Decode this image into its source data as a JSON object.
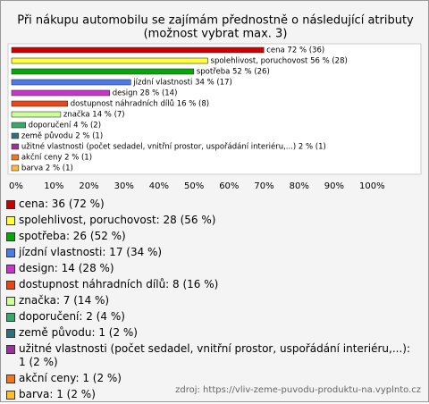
{
  "chart_data": {
    "type": "bar",
    "orientation": "horizontal",
    "title": "Při nákupu automobilu se zajímám přednostně o následující atributy",
    "subtitle": "(možnost vybrat max. 3)",
    "categories": [
      "cena",
      "spolehlivost, poruchovost",
      "spotřeba",
      "jízdní vlastnosti",
      "design",
      "dostupnost náhradních dílů",
      "značka",
      "doporučení",
      "země původu",
      "užitné vlastnosti (počet sedadel, vnitřní prostor, uspořádání interiéru,...)",
      "akční ceny",
      "barva"
    ],
    "values": [
      72,
      56,
      52,
      34,
      28,
      16,
      14,
      4,
      2,
      2,
      2,
      2
    ],
    "value_labels": [
      "cena 72 % (36)",
      "spolehlivost, poruchovost 56 % (28)",
      "spotřeba 52 % (26)",
      "jízdní vlastnosti 34 % (17)",
      "design 28 % (14)",
      "dostupnost náhradních dílů 16 % (8)",
      "značka 14 % (7)",
      "doporučení 4 % (2)",
      "země původu 2 % (1)",
      "užitné vlastnosti (počet sedadel, vnitřní prostor, uspořádání interiéru,...) 2 % (1)",
      "akční ceny 2 % (1)",
      "barva 2 % (1)"
    ],
    "legend": [
      "cena: 36 (72 %)",
      "spolehlivost, poruchovost: 28 (56 %)",
      "spotřeba: 26 (52 %)",
      "jízdní vlastnosti: 17 (34 %)",
      "design: 14 (28 %)",
      "dostupnost náhradních dílů: 8 (16 %)",
      "značka: 7 (14 %)",
      "doporučení: 2 (4 %)",
      "země původu: 1 (2 %)",
      "užitné vlastnosti (počet sedadel, vnitřní prostor, uspořádání interiéru,...): 1 (2 %)",
      "akční ceny: 1 (2 %)",
      "barva: 1 (2 %)"
    ],
    "colors": [
      "#cc0000",
      "#ffff33",
      "#00aa00",
      "#4a7bee",
      "#cc33cc",
      "#ee4411",
      "#ccff99",
      "#33aa66",
      "#2f6f7a",
      "#993399",
      "#ee7722",
      "#ffbb33"
    ],
    "xlim": [
      0,
      100
    ],
    "xticks": [
      {
        "value": 0,
        "label": "0%"
      },
      {
        "value": 10,
        "label": "10%"
      },
      {
        "value": 20,
        "label": "20%"
      },
      {
        "value": 30,
        "label": "30%"
      },
      {
        "value": 40,
        "label": "40%"
      },
      {
        "value": 50,
        "label": "50%"
      },
      {
        "value": 60,
        "label": "60%"
      },
      {
        "value": 70,
        "label": "70%"
      },
      {
        "value": 80,
        "label": "80%"
      },
      {
        "value": 90,
        "label": "90%"
      },
      {
        "value": 100,
        "label": "100%"
      }
    ],
    "source": "zdroj: https://vliv-zeme-puvodu-produktu-na.vyplnto.cz"
  }
}
